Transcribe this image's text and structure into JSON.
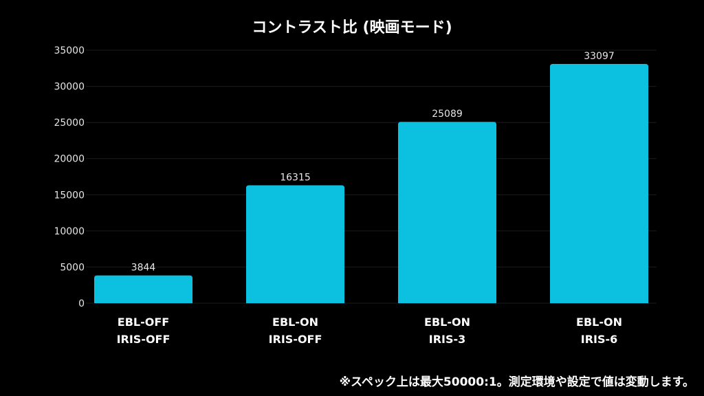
{
  "chart_data": {
    "type": "bar",
    "title": "コントラスト比 (映画モード)",
    "categories": [
      [
        "EBL-OFF",
        "IRIS-OFF"
      ],
      [
        "EBL-ON",
        "IRIS-OFF"
      ],
      [
        "EBL-ON",
        "IRIS-3"
      ],
      [
        "EBL-ON",
        "IRIS-6"
      ]
    ],
    "values": [
      3844,
      16315,
      25089,
      33097
    ],
    "data_labels": [
      "3844",
      "16315",
      "25089",
      "33097"
    ],
    "ylim": [
      0,
      35000
    ],
    "yticks": [
      "0",
      "5000",
      "10000",
      "15000",
      "20000",
      "25000",
      "30000",
      "35000"
    ],
    "grid": true,
    "bar_color": "#0cc0df",
    "background": "#000000",
    "xlabel": "",
    "ylabel": ""
  },
  "footnote": "※スペック上は最大50000:1。測定環境や設定で値は変動します。"
}
